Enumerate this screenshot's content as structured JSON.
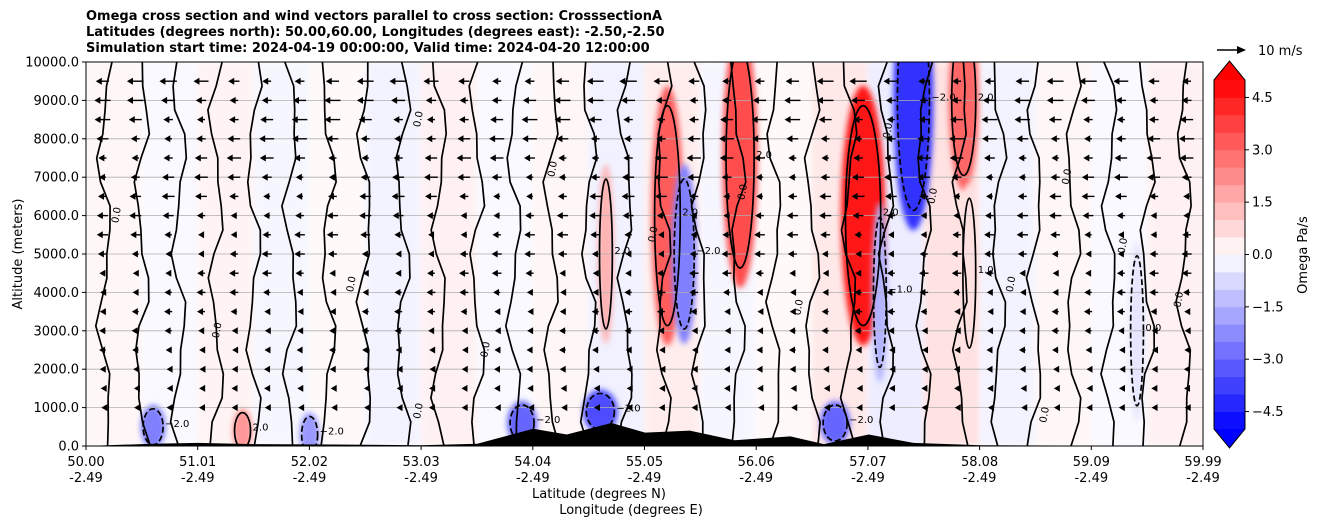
{
  "chart_data": {
    "type": "heatmap",
    "title_lines": [
      "Omega cross section and wind vectors parallel to cross section: CrosssectionA",
      "Latitudes (degrees north): 50.00,60.00, Longitudes (degrees east): -2.50,-2.50",
      "Simulation start time: 2024-04-19 00:00:00, Valid time: 2024-04-20 12:00:00"
    ],
    "ylabel": "Altitude (meters)",
    "xlabel_lat": "Latitude (degrees N)",
    "xlabel_lon": "Longitude (degrees E)",
    "ylim": [
      0,
      10000
    ],
    "y_ticks": [
      "0.0",
      "1000.0",
      "2000.0",
      "3000.0",
      "4000.0",
      "5000.0",
      "6000.0",
      "7000.0",
      "8000.0",
      "9000.0",
      "10000.0"
    ],
    "x_ticks_lat": [
      "50.00",
      "51.01",
      "52.02",
      "53.03",
      "54.04",
      "55.05",
      "56.06",
      "57.07",
      "58.08",
      "59.09",
      "59.99"
    ],
    "x_ticks_lon": [
      "-2.49",
      "-2.49",
      "-2.49",
      "-2.49",
      "-2.49",
      "-2.49",
      "-2.49",
      "-2.49",
      "-2.49",
      "-2.49",
      "-2.49"
    ],
    "grid": "horizontal",
    "colorbar": {
      "label": "Omega Pa/s",
      "range": [
        -5.0,
        5.0
      ],
      "ticks": [
        "4.5",
        "3.0",
        "1.5",
        "0.0",
        "−1.5",
        "−3.0",
        "−4.5"
      ],
      "extend": "both",
      "colormap": "bwr"
    },
    "quiver_key": {
      "label": "10 m/s"
    },
    "contour_levels": [
      -2.0,
      -1.0,
      0.0,
      1.0,
      2.0
    ],
    "omega_features": [
      {
        "lat": 50.6,
        "alt": 500,
        "omega": -2.5
      },
      {
        "lat": 51.4,
        "alt": 400,
        "omega": 2.0
      },
      {
        "lat": 52.0,
        "alt": 300,
        "omega": -2.0
      },
      {
        "lat": 53.9,
        "alt": 600,
        "omega": -3.0
      },
      {
        "lat": 54.6,
        "alt": 900,
        "omega": -3.5
      },
      {
        "lat": 54.65,
        "alt": 5000,
        "omega": 1.5
      },
      {
        "lat": 55.2,
        "alt": 6000,
        "omega": 3.2
      },
      {
        "lat": 55.35,
        "alt": 5000,
        "omega": -2.5
      },
      {
        "lat": 55.85,
        "alt": 7500,
        "omega": 3.5
      },
      {
        "lat": 56.7,
        "alt": 600,
        "omega": -3.0
      },
      {
        "lat": 56.95,
        "alt": 6000,
        "omega": 4.5
      },
      {
        "lat": 57.1,
        "alt": 4000,
        "omega": -1.5
      },
      {
        "lat": 57.4,
        "alt": 9000,
        "omega": -4.0
      },
      {
        "lat": 57.85,
        "alt": 9000,
        "omega": 3.0
      },
      {
        "lat": 57.9,
        "alt": 4500,
        "omega": 0.6
      },
      {
        "lat": 59.4,
        "alt": 3000,
        "omega": -0.5
      }
    ],
    "wind_u_ms": -8,
    "terrain": [
      {
        "lat": 50.0,
        "alt": 0
      },
      {
        "lat": 50.6,
        "alt": 60
      },
      {
        "lat": 51.0,
        "alt": 80
      },
      {
        "lat": 51.5,
        "alt": 50
      },
      {
        "lat": 52.2,
        "alt": 40
      },
      {
        "lat": 53.0,
        "alt": 20
      },
      {
        "lat": 53.5,
        "alt": 60
      },
      {
        "lat": 54.0,
        "alt": 450
      },
      {
        "lat": 54.3,
        "alt": 300
      },
      {
        "lat": 54.7,
        "alt": 600
      },
      {
        "lat": 55.0,
        "alt": 350
      },
      {
        "lat": 55.4,
        "alt": 400
      },
      {
        "lat": 55.8,
        "alt": 150
      },
      {
        "lat": 56.3,
        "alt": 250
      },
      {
        "lat": 56.6,
        "alt": 50
      },
      {
        "lat": 57.0,
        "alt": 300
      },
      {
        "lat": 57.4,
        "alt": 80
      },
      {
        "lat": 58.0,
        "alt": 20
      },
      {
        "lat": 59.99,
        "alt": 0
      }
    ]
  }
}
